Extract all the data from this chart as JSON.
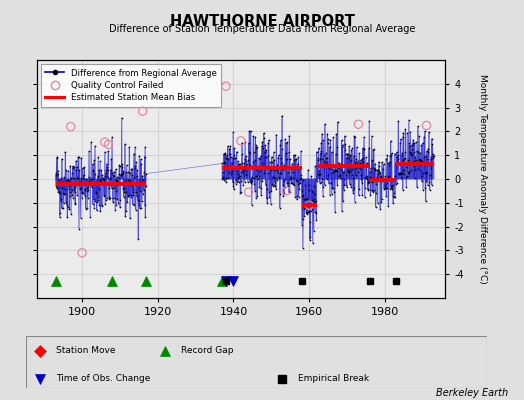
{
  "title": "HAWTHORNE AIRPORT",
  "subtitle": "Difference of Station Temperature Data from Regional Average",
  "ylabel": "Monthly Temperature Anomaly Difference (°C)",
  "credit": "Berkeley Earth",
  "ylim": [
    -5,
    5
  ],
  "yticks": [
    -4,
    -3,
    -2,
    -1,
    0,
    1,
    2,
    3,
    4
  ],
  "bg_color": "#e0e0e0",
  "plot_bg_color": "#ebebeb",
  "grid_color": "#c8c8c8",
  "segments": [
    {
      "x_start": 1893,
      "x_end": 1917,
      "bias": -0.2
    },
    {
      "x_start": 1937,
      "x_end": 1958,
      "bias": 0.45
    },
    {
      "x_start": 1958,
      "x_end": 1962,
      "bias": -1.1
    },
    {
      "x_start": 1962,
      "x_end": 1976,
      "bias": 0.55
    },
    {
      "x_start": 1976,
      "x_end": 1983,
      "bias": -0.05
    },
    {
      "x_start": 1983,
      "x_end": 1993,
      "bias": 0.65
    }
  ],
  "record_gaps": [
    1893,
    1908,
    1917,
    1937
  ],
  "time_of_obs_changes": [
    1938,
    1940
  ],
  "empirical_breaks": [
    1938,
    1958,
    1976,
    1983
  ],
  "qc_failed_approx": [
    [
      1897,
      2.2
    ],
    [
      1900,
      -3.1
    ],
    [
      1906,
      1.55
    ],
    [
      1907,
      1.45
    ],
    [
      1916,
      2.85
    ],
    [
      1938,
      3.9
    ],
    [
      1942,
      1.6
    ],
    [
      1944,
      -0.55
    ],
    [
      1954,
      -0.5
    ],
    [
      1960,
      -1.1
    ],
    [
      1973,
      2.3
    ],
    [
      1991,
      2.25
    ]
  ],
  "seed": 42,
  "xmin": 1888,
  "xmax": 1996,
  "noise_std": 0.72
}
